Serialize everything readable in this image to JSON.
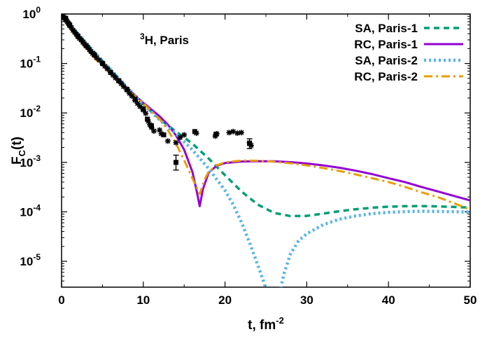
{
  "chart_data": {
    "type": "line",
    "title": "",
    "xlabel": "t, fm",
    "xlabel_sup": "-2",
    "ylabel": "F",
    "ylabel_sub": "C",
    "ylabel_tail": "(t)",
    "xlim": [
      0,
      50
    ],
    "ylim": [
      3e-06,
      1.0
    ],
    "y_scale": "log",
    "grid": false,
    "legend_position": "top-right",
    "x_ticks": [
      0,
      10,
      20,
      30,
      40,
      50
    ],
    "y_ticks": [
      {
        "value": 1,
        "mant": "10",
        "exp": "0"
      },
      {
        "value": 0.1,
        "mant": "10",
        "exp": "-1"
      },
      {
        "value": 0.01,
        "mant": "10",
        "exp": "-2"
      },
      {
        "value": 0.001,
        "mant": "10",
        "exp": "-3"
      },
      {
        "value": 0.0001,
        "mant": "10",
        "exp": "-4"
      },
      {
        "value": 1e-05,
        "mant": "10",
        "exp": "-5"
      }
    ],
    "annotation": {
      "sup": "3",
      "text": "H, Paris",
      "x": 10,
      "y": 0.35
    },
    "series": [
      {
        "name": "SA, Paris-1",
        "color": "#009e73",
        "dash": "8,6",
        "width": 3.5,
        "x": [
          0,
          1,
          2,
          4,
          6,
          8,
          10,
          12,
          14,
          16,
          18,
          20,
          22,
          24,
          26,
          28,
          30,
          32,
          34,
          36,
          38,
          40,
          42,
          44,
          46,
          48,
          50
        ],
        "y": [
          1.0,
          0.62,
          0.4,
          0.17,
          0.075,
          0.033,
          0.015,
          0.0075,
          0.0042,
          0.0024,
          0.0012,
          0.00055,
          0.00026,
          0.00014,
          9.5e-05,
          8.2e-05,
          8.3e-05,
          9.2e-05,
          0.000103,
          0.000113,
          0.000121,
          0.000127,
          0.00013,
          0.000131,
          0.000129,
          0.000126,
          0.000122
        ]
      },
      {
        "name": "RC, Paris-1",
        "color": "#9400d3",
        "dash": "",
        "width": 3,
        "x": [
          0,
          1,
          2,
          4,
          6,
          8,
          10,
          12,
          13,
          14,
          15,
          16,
          16.5,
          16.9,
          17.3,
          18,
          19,
          20,
          22,
          24,
          26,
          28,
          30,
          32,
          34,
          36,
          38,
          40,
          42,
          44,
          46,
          48,
          50
        ],
        "y": [
          1.0,
          0.58,
          0.35,
          0.15,
          0.07,
          0.032,
          0.016,
          0.0085,
          0.0058,
          0.0035,
          0.0018,
          0.00065,
          0.00028,
          0.00013,
          0.00029,
          0.00062,
          0.00086,
          0.00097,
          0.00104,
          0.00106,
          0.00105,
          0.00101,
          0.00095,
          0.00087,
          0.00078,
          0.00068,
          0.00058,
          0.00048,
          0.0004,
          0.00032,
          0.00026,
          0.00021,
          0.00017
        ]
      },
      {
        "name": "SA, Paris-2",
        "color": "#56b4e9",
        "dash": "3,4",
        "width": 4.5,
        "x": [
          0,
          1,
          2,
          4,
          6,
          8,
          10,
          12,
          14,
          16,
          18,
          20,
          21,
          22,
          23,
          24,
          24.6,
          25.0,
          26.8,
          27.2,
          28,
          29,
          30,
          32,
          34,
          36,
          38,
          40,
          42,
          44,
          46,
          48,
          50
        ],
        "y": [
          1.0,
          0.62,
          0.4,
          0.17,
          0.075,
          0.033,
          0.015,
          0.0072,
          0.0038,
          0.0018,
          0.00075,
          0.00027,
          0.00014,
          6.2e-05,
          2.4e-05,
          8.5e-06,
          4.5e-06,
          2.8e-06,
          2.8e-06,
          5.5e-06,
          1.4e-05,
          2.6e-05,
          3.6e-05,
          5.5e-05,
          7.1e-05,
          8.3e-05,
          9.2e-05,
          9.8e-05,
          0.000101,
          0.000103,
          0.000102,
          0.000101,
          9.9e-05
        ]
      },
      {
        "name": "RC, Paris-2",
        "color": "#e69f00",
        "dash": "12,5,3,5",
        "width": 3,
        "x": [
          0,
          1,
          2,
          4,
          6,
          8,
          10,
          12,
          13,
          14,
          15,
          16,
          16.9,
          17.5,
          18,
          19,
          20,
          22,
          24,
          26,
          28,
          30,
          32,
          34,
          36,
          38,
          40,
          42,
          44,
          46,
          48,
          50
        ],
        "y": [
          1.0,
          0.53,
          0.31,
          0.13,
          0.062,
          0.03,
          0.0155,
          0.0075,
          0.0045,
          0.0024,
          0.0011,
          0.00048,
          0.00023,
          0.00045,
          0.00065,
          0.00088,
          0.001,
          0.00109,
          0.00108,
          0.00103,
          0.00096,
          0.00087,
          0.00077,
          0.00067,
          0.00057,
          0.00048,
          0.0004,
          0.00032,
          0.00025,
          0.0002,
          0.00015,
          0.00011
        ]
      }
    ],
    "experimental_points": {
      "stars": [
        [
          0.05,
          0.95
        ],
        [
          0.1,
          0.88
        ],
        [
          0.2,
          0.92
        ],
        [
          0.3,
          0.85
        ],
        [
          0.4,
          0.82
        ],
        [
          0.5,
          0.78
        ],
        [
          0.6,
          0.74
        ],
        [
          0.7,
          0.7
        ],
        [
          0.8,
          0.66
        ],
        [
          0.9,
          0.63
        ],
        [
          1.0,
          0.58
        ],
        [
          1.2,
          0.53
        ],
        [
          1.4,
          0.47
        ],
        [
          1.6,
          0.43
        ],
        [
          1.8,
          0.39
        ],
        [
          2.0,
          0.35
        ],
        [
          2.2,
          0.32
        ],
        [
          2.4,
          0.3
        ],
        [
          2.6,
          0.27
        ],
        [
          2.8,
          0.25
        ],
        [
          3.0,
          0.23
        ],
        [
          3.2,
          0.21
        ],
        [
          3.4,
          0.19
        ],
        [
          3.6,
          0.175
        ],
        [
          3.8,
          0.16
        ],
        [
          4.0,
          0.15
        ],
        [
          4.3,
          0.13
        ],
        [
          4.6,
          0.118
        ],
        [
          5.0,
          0.1
        ],
        [
          5.3,
          0.088
        ],
        [
          5.6,
          0.078
        ],
        [
          6.0,
          0.066
        ],
        [
          6.3,
          0.058
        ],
        [
          6.6,
          0.051
        ],
        [
          7.0,
          0.044
        ],
        [
          7.3,
          0.039
        ],
        [
          7.6,
          0.034
        ],
        [
          8.0,
          0.029
        ],
        [
          8.3,
          0.025
        ],
        [
          8.6,
          0.022
        ],
        [
          9.0,
          0.018
        ],
        [
          9.3,
          0.0155
        ],
        [
          9.6,
          0.0135
        ],
        [
          10.0,
          0.0115
        ],
        [
          10.3,
          0.0098
        ],
        [
          10.6,
          0.0068
        ],
        [
          10.8,
          0.0058
        ],
        [
          11.0,
          0.0051
        ],
        [
          11.3,
          0.0043
        ],
        [
          12.0,
          0.0045
        ],
        [
          12.2,
          0.0038
        ],
        [
          13.0,
          0.0027
        ],
        [
          14.0,
          0.0025
        ],
        [
          14.5,
          0.0032
        ],
        [
          15.0,
          0.0036
        ],
        [
          16.5,
          0.0039
        ],
        [
          18.8,
          0.0034
        ],
        [
          19.0,
          0.0038
        ],
        [
          20.5,
          0.004
        ],
        [
          21.0,
          0.0042
        ],
        [
          21.5,
          0.0039
        ],
        [
          22.0,
          0.004
        ],
        [
          23.0,
          0.0025
        ],
        [
          23.2,
          0.0022
        ]
      ],
      "squares": [
        [
          0.5,
          0.82
        ],
        [
          1.0,
          0.6
        ],
        [
          2.0,
          0.36
        ],
        [
          3.0,
          0.23
        ],
        [
          4.0,
          0.15
        ],
        [
          5.0,
          0.1
        ],
        [
          6.0,
          0.066
        ],
        [
          7.0,
          0.045
        ],
        [
          8.0,
          0.03
        ],
        [
          9.0,
          0.019
        ],
        [
          10.0,
          0.012
        ],
        [
          10.5,
          0.0075
        ],
        [
          11.0,
          0.0055
        ],
        [
          12.5,
          0.0036
        ],
        [
          14.0,
          0.001
        ],
        [
          16.3,
          0.0042
        ],
        [
          18.9,
          0.0037
        ],
        [
          23.0,
          0.0024
        ]
      ],
      "errorbars": [
        {
          "x": 14.0,
          "y": 0.001,
          "lo": 0.0007,
          "hi": 0.0014
        },
        {
          "x": 23.0,
          "y": 0.0024,
          "lo": 0.0019,
          "hi": 0.003
        }
      ]
    }
  }
}
